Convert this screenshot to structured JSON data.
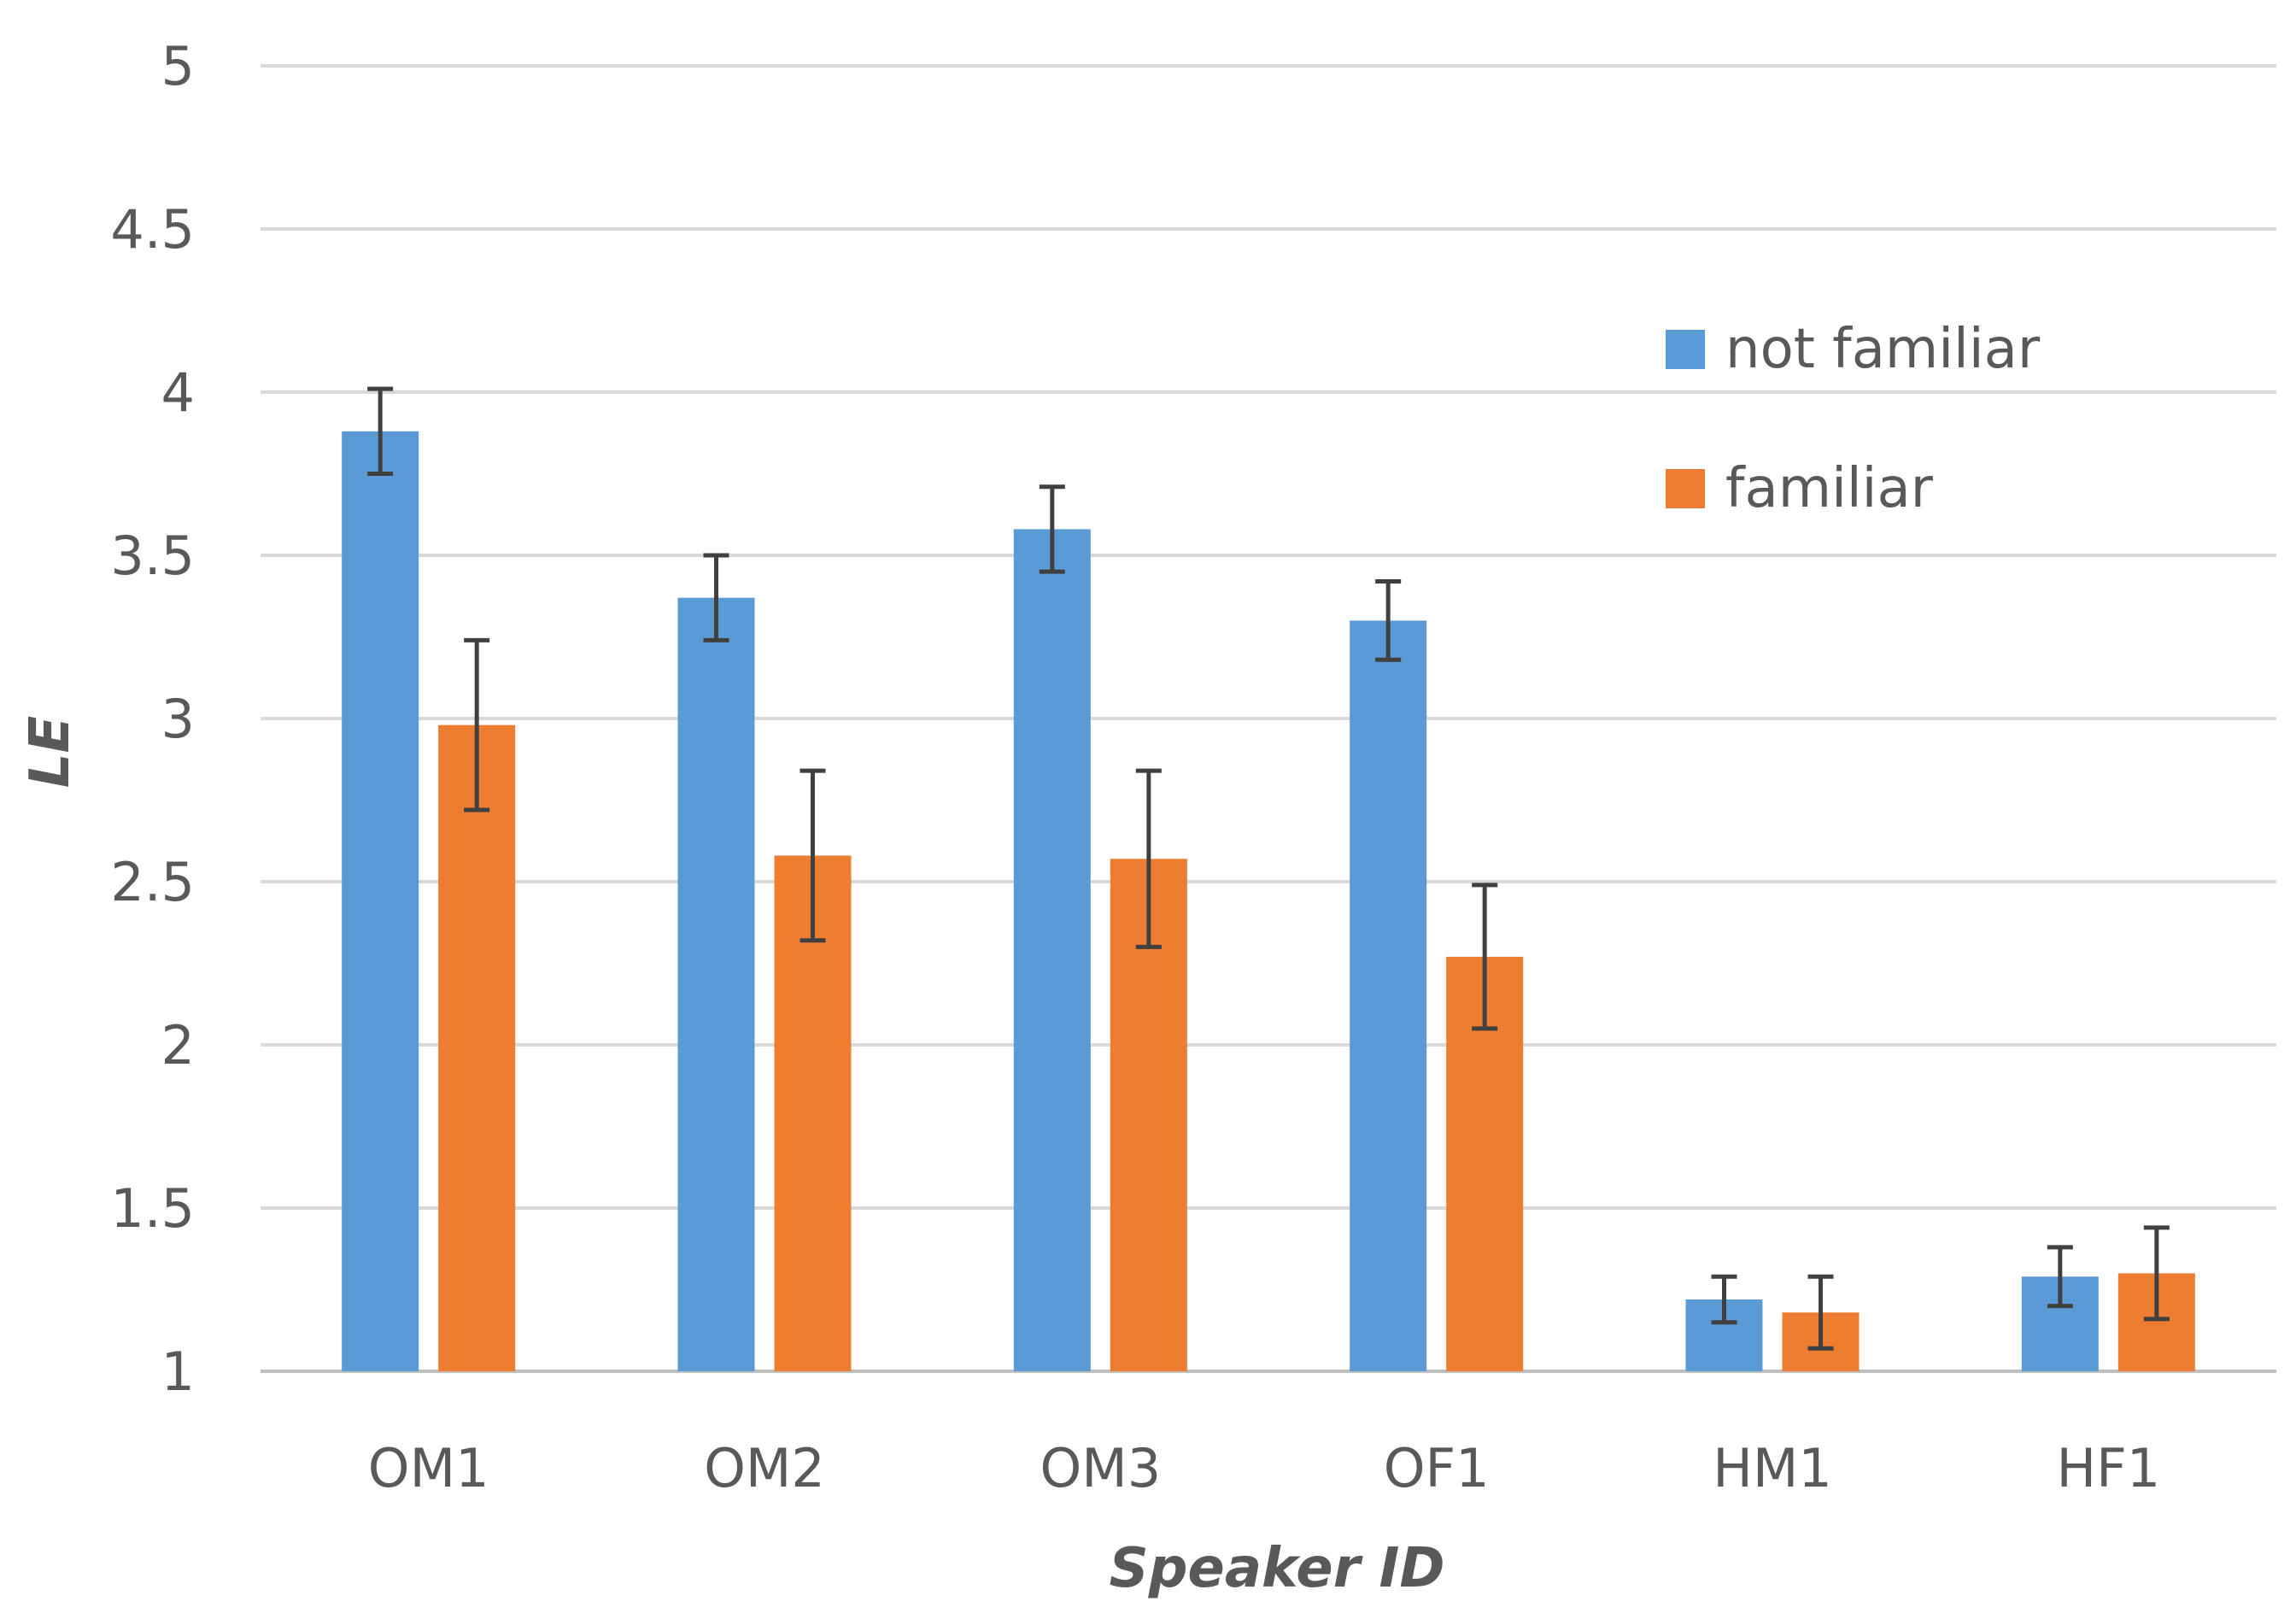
{
  "chart_data": {
    "type": "bar",
    "title": "",
    "xlabel": "Speaker ID",
    "ylabel": "LE",
    "ylim": [
      1,
      5
    ],
    "yticks": [
      "1",
      "1.5",
      "2",
      "2.5",
      "3",
      "3.5",
      "4",
      "4.5",
      "5"
    ],
    "grid": true,
    "legend_position": "top-right",
    "categories": [
      "OM1",
      "OM2",
      "OM3",
      "OF1",
      "HM1",
      "HF1"
    ],
    "series": [
      {
        "name": "not familiar",
        "color": "#5b9bd5",
        "values": [
          3.88,
          3.37,
          3.58,
          3.3,
          1.22,
          1.29
        ],
        "error": [
          0.13,
          0.13,
          0.13,
          0.12,
          0.07,
          0.09
        ]
      },
      {
        "name": "familiar",
        "color": "#ed7d31",
        "values": [
          2.98,
          2.58,
          2.57,
          2.27,
          1.18,
          1.3
        ],
        "error": [
          0.26,
          0.26,
          0.27,
          0.22,
          0.11,
          0.14
        ]
      }
    ]
  }
}
